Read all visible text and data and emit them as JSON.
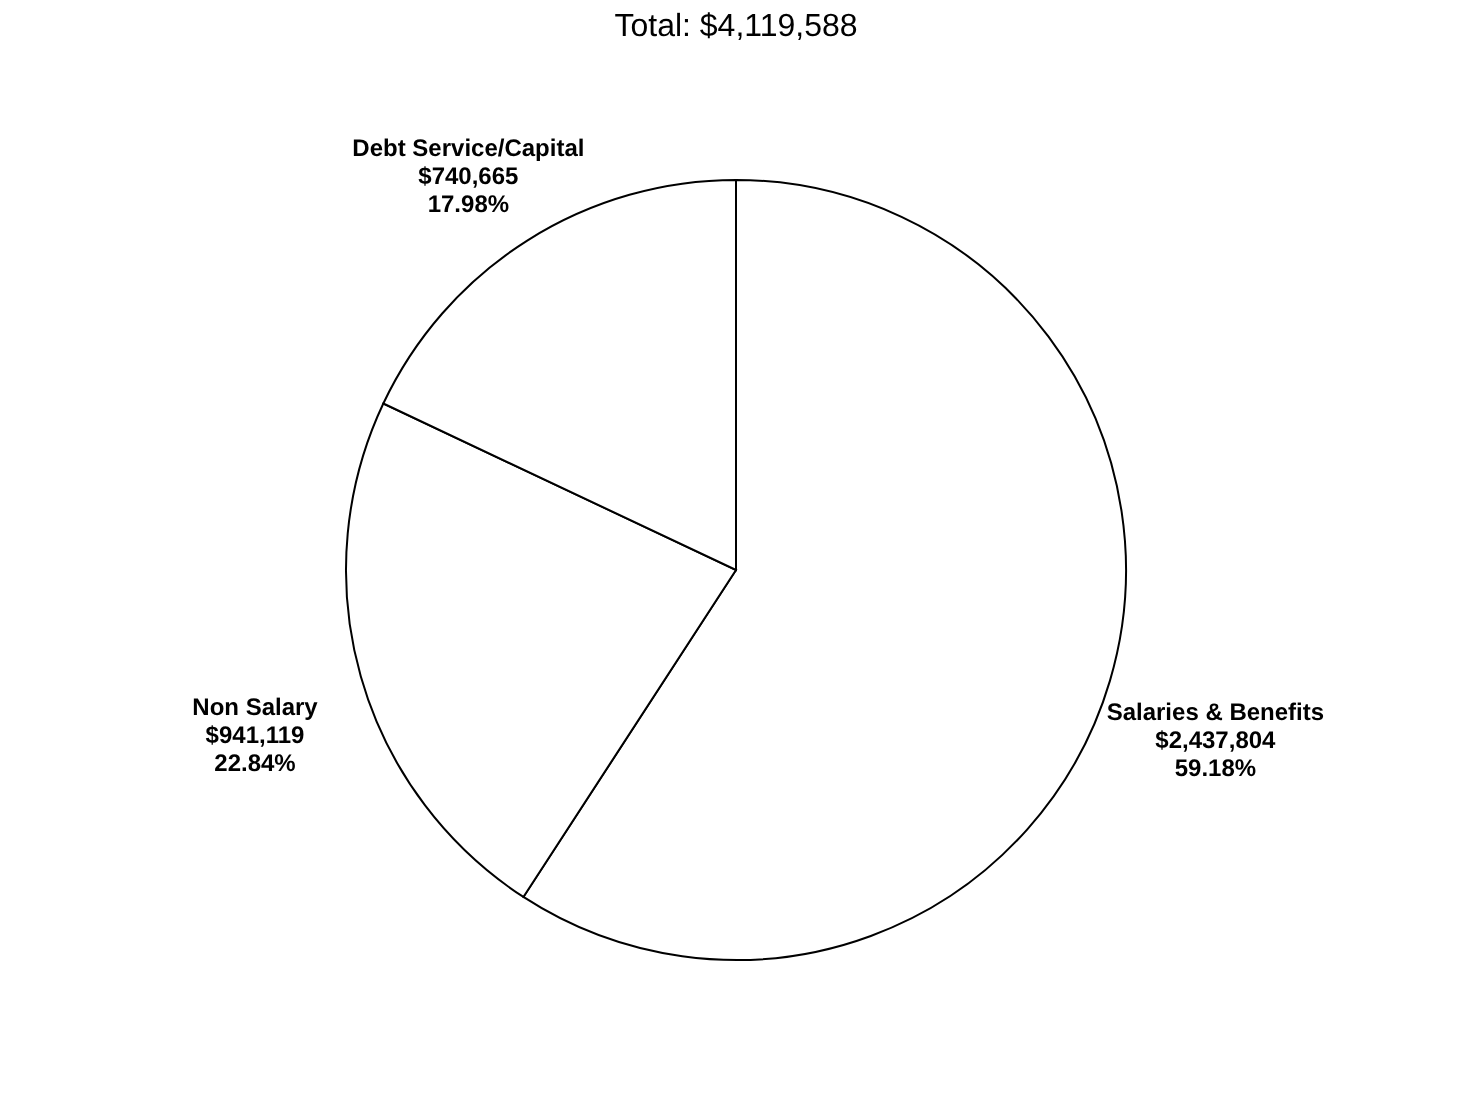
{
  "chart_data": {
    "type": "pie",
    "title": "Total: $4,119,588",
    "categories": [
      "Salaries & Benefits",
      "Non Salary",
      "Debt Service/Capital"
    ],
    "values": [
      2437804,
      941119,
      740665
    ],
    "colors": [
      "#ffffff",
      "#ffffff",
      "#ffffff"
    ],
    "value_labels": [
      "$2,437,804\n59.18%",
      "$941,119\n22.84%",
      "$740,665\n17.98%"
    ],
    "legend": false
  }
}
